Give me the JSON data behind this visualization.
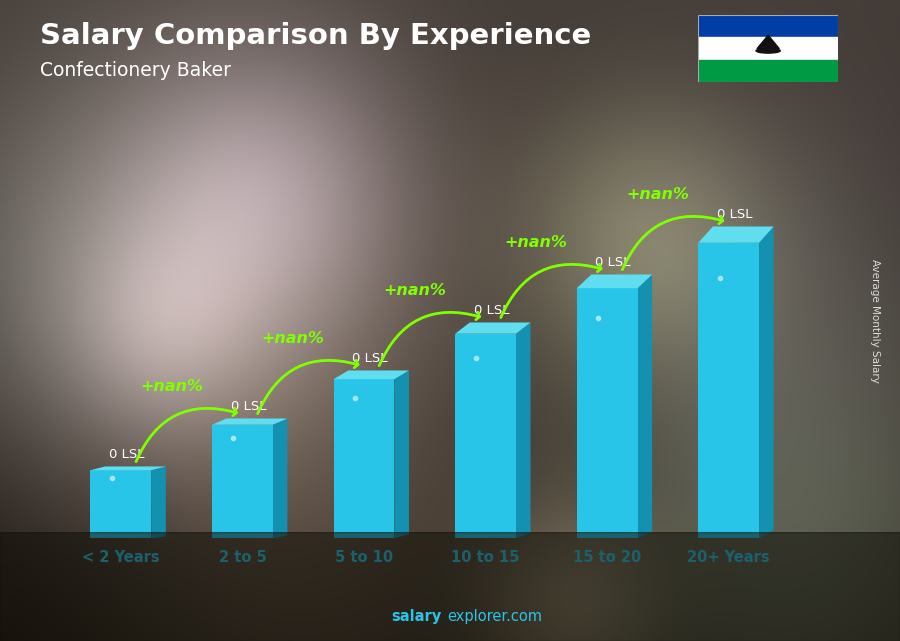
{
  "title": "Salary Comparison By Experience",
  "subtitle": "Confectionery Baker",
  "categories": [
    "< 2 Years",
    "2 to 5",
    "5 to 10",
    "10 to 15",
    "15 to 20",
    "20+ Years"
  ],
  "salary_labels": [
    "0 LSL",
    "0 LSL",
    "0 LSL",
    "0 LSL",
    "0 LSL",
    "0 LSL"
  ],
  "increase_labels": [
    "+nan%",
    "+nan%",
    "+nan%",
    "+nan%",
    "+nan%"
  ],
  "bar_heights": [
    1.5,
    2.5,
    3.5,
    4.5,
    5.5,
    6.5
  ],
  "bar_color_face": "#29C5E8",
  "bar_color_side": "#1490B0",
  "bar_color_top": "#60DDEF",
  "increase_color": "#80FF00",
  "title_color": "#FFFFFF",
  "subtitle_color": "#FFFFFF",
  "xlabel_color": "#29C5E8",
  "salary_label_color": "#FFFFFF",
  "bg_color_top": "#4a4040",
  "bg_color_bottom": "#1a1510",
  "ylabel": "Average Monthly Salary",
  "website_bold": "salary",
  "website_normal": "explorer.com",
  "flag_blue": "#003DA5",
  "flag_white": "#FFFFFF",
  "flag_green": "#009A44",
  "figsize": [
    9.0,
    6.41
  ]
}
